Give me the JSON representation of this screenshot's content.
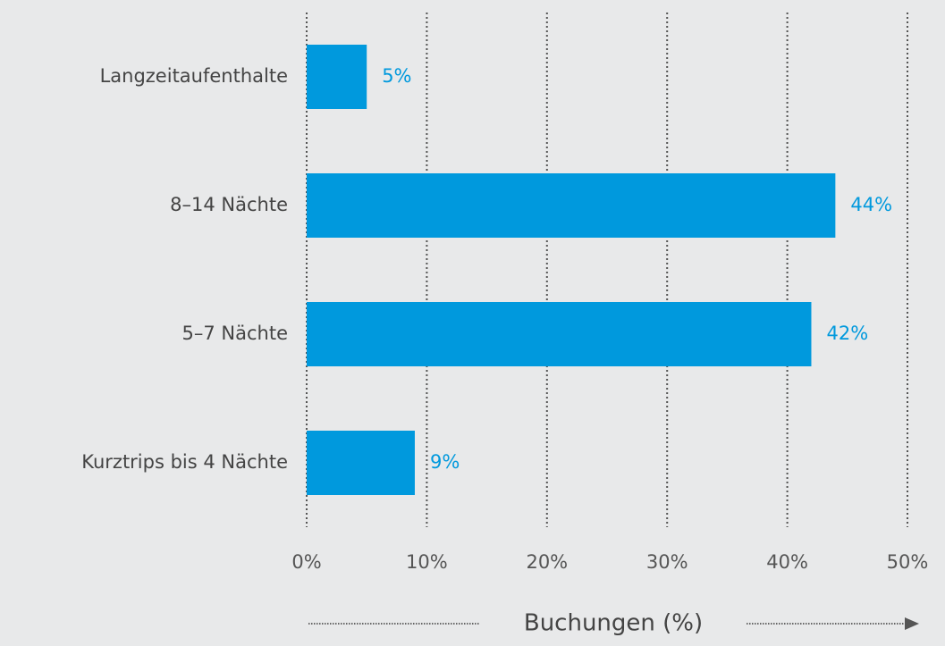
{
  "chart_data": {
    "type": "barh",
    "xlabel": "Buchungen (%)",
    "categories": [
      "Langzeitaufenthalte",
      "8–14 Nächte",
      "5–7 Nächte",
      "Kurztrips bis 4 Nächte"
    ],
    "values": [
      5,
      44,
      42,
      9
    ],
    "value_labels": [
      "5%",
      "44%",
      "42%",
      "9%"
    ],
    "color": "#0099dd",
    "xlim": [
      0,
      50
    ],
    "xticks": [
      {
        "value": 0,
        "label": "0%"
      },
      {
        "value": 10,
        "label": "10%"
      },
      {
        "value": 20,
        "label": "20%"
      },
      {
        "value": 30,
        "label": "30%"
      },
      {
        "value": 40,
        "label": "40%"
      },
      {
        "value": 50,
        "label": "50%"
      }
    ],
    "grid": true
  }
}
